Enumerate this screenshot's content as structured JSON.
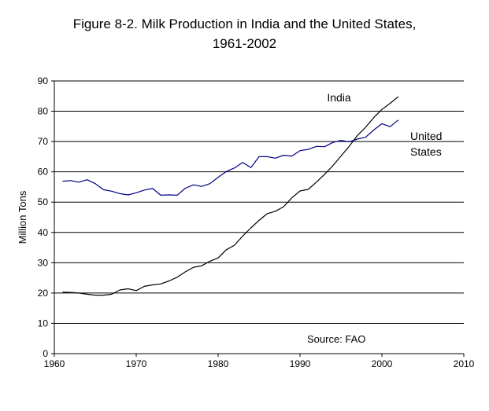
{
  "chart_data": {
    "type": "line",
    "title_line1": "Figure 8-2. Milk Production in India and the United States,",
    "title_line2": "1961-2002",
    "xlabel": "",
    "ylabel": "Million Tons",
    "xlim": [
      1960,
      2010
    ],
    "ylim": [
      0,
      90
    ],
    "x_ticks": [
      1960,
      1970,
      1980,
      1990,
      2000,
      2010
    ],
    "y_ticks": [
      0,
      10,
      20,
      30,
      40,
      50,
      60,
      70,
      80,
      90
    ],
    "grid": "horizontal",
    "annotation": "Source: FAO",
    "x": [
      1961,
      1962,
      1963,
      1964,
      1965,
      1966,
      1967,
      1968,
      1969,
      1970,
      1971,
      1972,
      1973,
      1974,
      1975,
      1976,
      1977,
      1978,
      1979,
      1980,
      1981,
      1982,
      1983,
      1984,
      1985,
      1986,
      1987,
      1988,
      1989,
      1990,
      1991,
      1992,
      1993,
      1994,
      1995,
      1996,
      1997,
      1998,
      1999,
      2000,
      2001,
      2002
    ],
    "series": [
      {
        "name": "India",
        "label_lines": [
          "India"
        ],
        "color": "#000000",
        "values": [
          20.3,
          20.2,
          20.0,
          19.6,
          19.3,
          19.3,
          19.6,
          21.0,
          21.4,
          20.8,
          22.2,
          22.7,
          23.0,
          24.0,
          25.2,
          27.0,
          28.5,
          29.0,
          30.5,
          31.6,
          34.3,
          35.8,
          38.8,
          41.5,
          44.0,
          46.2,
          47.0,
          48.5,
          51.4,
          53.7,
          54.2,
          56.6,
          59.2,
          62.0,
          65.2,
          68.4,
          72.0,
          74.7,
          77.9,
          80.6,
          82.6,
          84.8
        ],
        "label_year": 1993.3,
        "label_value": 83.3
      },
      {
        "name": "United States",
        "label_lines": [
          "United",
          "States"
        ],
        "color": "#000080",
        "values": [
          56.9,
          57.1,
          56.6,
          57.4,
          56.1,
          54.1,
          53.6,
          52.8,
          52.4,
          53.1,
          54.0,
          54.5,
          52.3,
          52.4,
          52.3,
          54.6,
          55.7,
          55.2,
          56.1,
          58.2,
          60.1,
          61.3,
          63.1,
          61.4,
          65.0,
          65.0,
          64.5,
          65.5,
          65.2,
          67.0,
          67.4,
          68.4,
          68.3,
          69.7,
          70.4,
          69.9,
          70.8,
          71.4,
          73.8,
          75.9,
          74.9,
          77.1
        ]
      }
    ]
  }
}
